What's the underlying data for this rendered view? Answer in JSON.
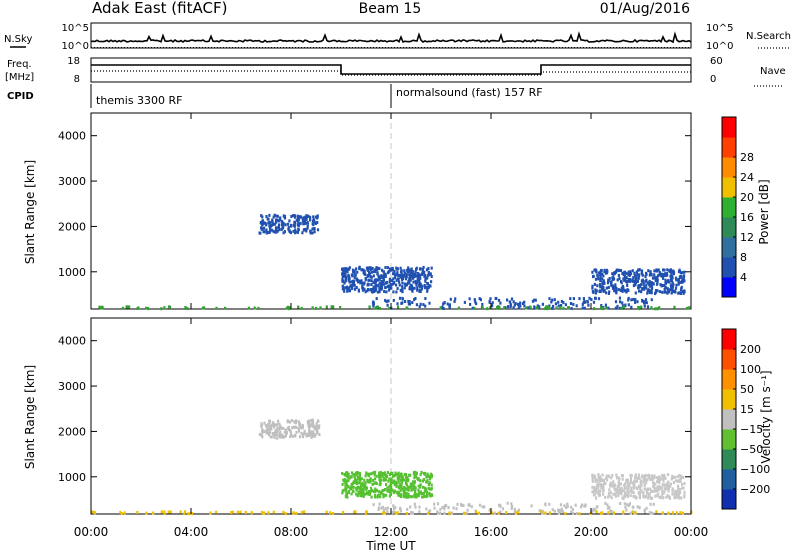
{
  "header": {
    "station": "Adak East (fitACF)",
    "beam": "Beam 15",
    "date": "01/Aug/2016"
  },
  "sky_panel": {
    "left_label": "N.Sky",
    "right_label": "N.Search",
    "left_ticks": [
      "10^5",
      "10^0"
    ],
    "right_ticks": [
      "10^5",
      "10^0"
    ]
  },
  "freq_panel": {
    "left_label_1": "Freq.",
    "left_label_2": "[MHz]",
    "left_ticks": [
      "18",
      "8"
    ],
    "right_label": "Nave",
    "right_ticks": [
      "60",
      "0"
    ]
  },
  "cpid": {
    "label": "CPID",
    "modes": [
      {
        "name": "themis 3300 RF",
        "start_h": 0
      },
      {
        "name": "normalsound (fast) 157 RF",
        "start_h": 12
      }
    ]
  },
  "x_axis": {
    "label": "Time UT",
    "ticks": [
      "00:00",
      "04:00",
      "08:00",
      "12:00",
      "16:00",
      "20:00",
      "00:00"
    ],
    "range_h": [
      0,
      24
    ]
  },
  "chart_data": [
    {
      "type": "heatmap",
      "name": "power",
      "ylabel": "Slant Range [km]",
      "ylim": [
        180,
        4500
      ],
      "yticks": [
        "1000",
        "2000",
        "3000",
        "4000"
      ],
      "colorbar": {
        "label": "Power [dB]",
        "ticks": [
          "4",
          "8",
          "12",
          "16",
          "20",
          "24",
          "28"
        ],
        "colors": [
          "#0000ff",
          "#2050b0",
          "#3070a0",
          "#2e8b57",
          "#30b030",
          "#f0c000",
          "#ff8c00",
          "#ff4000",
          "#ff0000"
        ]
      },
      "clusters": [
        {
          "t": [
            6.7,
            9.1
          ],
          "r": [
            1850,
            2250
          ],
          "color": "#2050b0",
          "n": 170
        },
        {
          "t": [
            10.0,
            13.6
          ],
          "r": [
            550,
            1100
          ],
          "color": "#2050b0",
          "n": 420
        },
        {
          "t": [
            20.0,
            23.7
          ],
          "r": [
            520,
            1050
          ],
          "color": "#2050b0",
          "n": 380
        },
        {
          "t": [
            11.2,
            22.5
          ],
          "r": [
            190,
            420
          ],
          "color": "#2050b0",
          "n": 170
        },
        {
          "t": [
            0.0,
            24.0
          ],
          "r": [
            185,
            230
          ],
          "color": "#30a030",
          "n": 90
        }
      ]
    },
    {
      "type": "heatmap",
      "name": "velocity",
      "ylabel": "Slant Range [km]",
      "ylim": [
        180,
        4500
      ],
      "yticks": [
        "1000",
        "2000",
        "3000",
        "4000"
      ],
      "colorbar": {
        "label": "Velocity [m s⁻¹]",
        "ticks": [
          "200",
          "100",
          "50",
          "15",
          "−15",
          "−50",
          "−100",
          "−200"
        ],
        "colors": [
          "#1030b0",
          "#2060a0",
          "#2e8b57",
          "#60c030",
          "#c0c0c0",
          "#f0c000",
          "#ff9000",
          "#ff5000",
          "#ff0000"
        ]
      },
      "clusters": [
        {
          "t": [
            6.7,
            9.1
          ],
          "r": [
            1850,
            2250
          ],
          "color": "#bfbfbf",
          "n": 170
        },
        {
          "t": [
            10.0,
            13.6
          ],
          "r": [
            550,
            1100
          ],
          "color": "#55c030",
          "n": 420
        },
        {
          "t": [
            20.0,
            23.7
          ],
          "r": [
            520,
            1050
          ],
          "color": "#c8c8c8",
          "n": 380
        },
        {
          "t": [
            11.2,
            22.5
          ],
          "r": [
            190,
            420
          ],
          "color": "#c0c0c0",
          "n": 150
        },
        {
          "t": [
            0.0,
            24.0
          ],
          "r": [
            185,
            230
          ],
          "color": "#f0c000",
          "n": 90
        }
      ]
    }
  ]
}
